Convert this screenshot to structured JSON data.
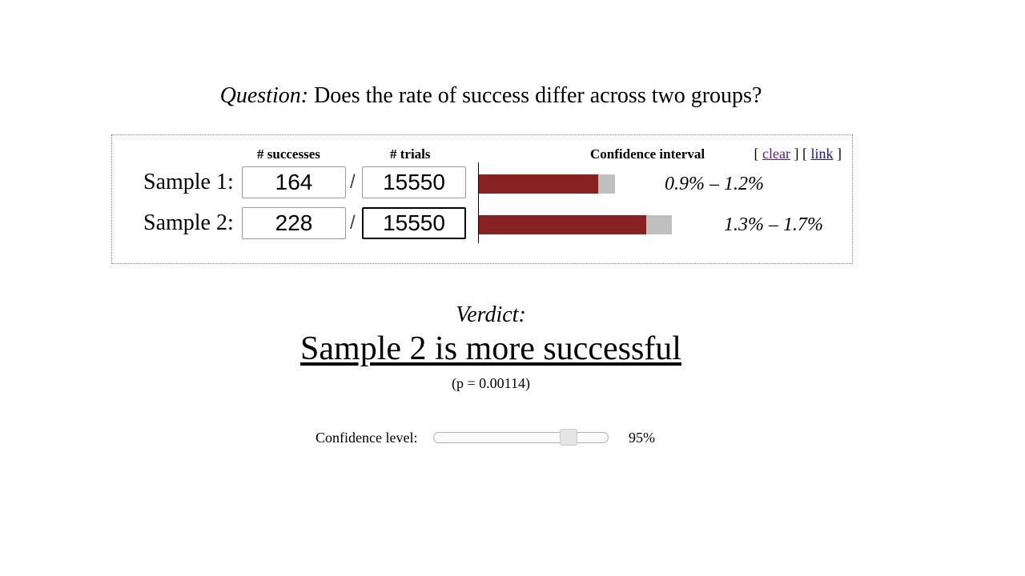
{
  "question": {
    "prefix": "Question:",
    "text": " Does the rate of success differ across two groups?"
  },
  "panel": {
    "headers": {
      "successes": "# successes",
      "trials": "# trials",
      "confidence_interval": "Confidence interval"
    },
    "links": {
      "open_bracket_1": "[ ",
      "clear": "clear",
      "mid": " ] [ ",
      "link": "link",
      "close_bracket": " ]"
    },
    "separator": "/",
    "samples": [
      {
        "label": "Sample 1:",
        "successes": "164",
        "trials": "15550",
        "ci_text": "0.9% – 1.2%",
        "ci_low": 0.009,
        "ci_high": 0.012,
        "point": 0.0105
      },
      {
        "label": "Sample 2:",
        "successes": "228",
        "trials": "15550",
        "ci_text": "1.3% – 1.7%",
        "ci_low": 0.013,
        "ci_high": 0.017,
        "point": 0.0147
      }
    ],
    "colors": {
      "bar_point": "#882222",
      "bar_interval": "#c0c0c0"
    }
  },
  "verdict": {
    "label": "Verdict:",
    "text": "Sample 2 is more successful",
    "p_value": "(p = 0.00114)"
  },
  "confidence": {
    "label": "Confidence level:",
    "value_text": "95%",
    "value_fraction": 0.8
  }
}
